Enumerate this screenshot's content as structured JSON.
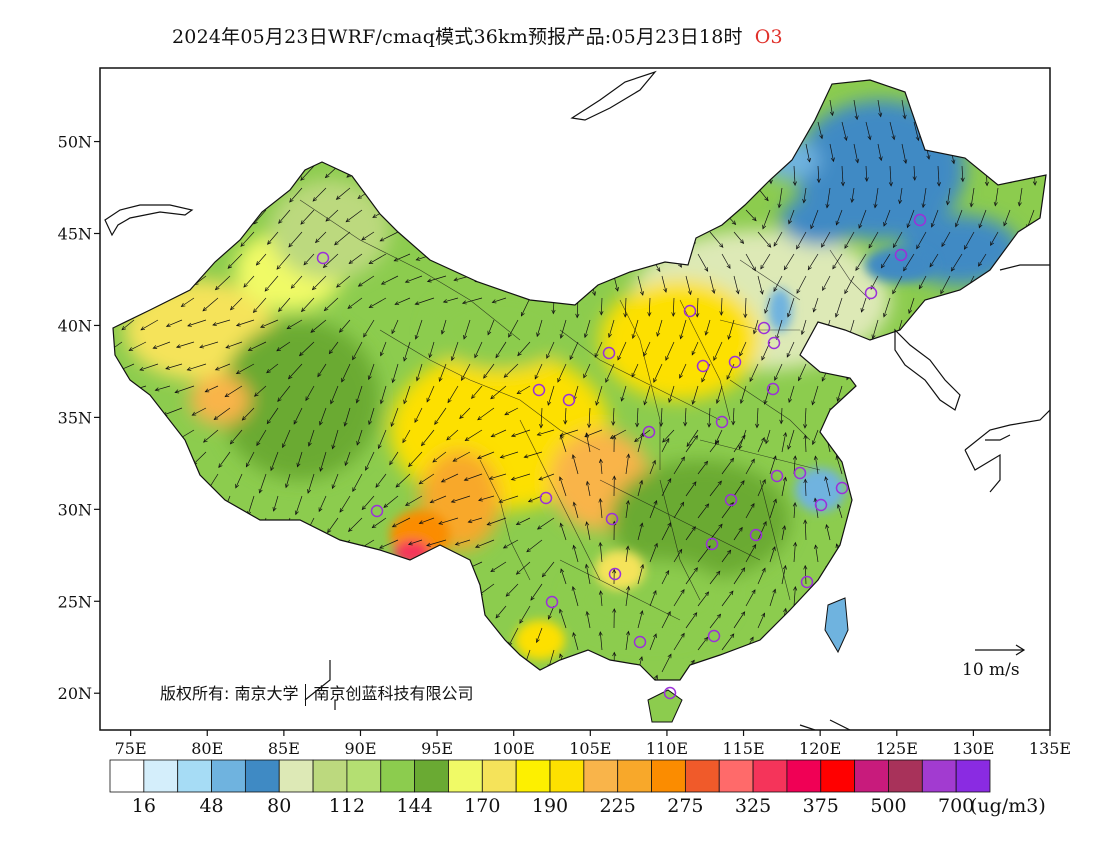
{
  "title": {
    "text": "2024年05月23日WRF/cmaq模式36km预报产品:05月23日18时",
    "species": "O3"
  },
  "map": {
    "lon_labels": [
      "75E",
      "80E",
      "85E",
      "90E",
      "95E",
      "100E",
      "105E",
      "110E",
      "115E",
      "120E",
      "125E",
      "130E",
      "135E"
    ],
    "lon_values": [
      75,
      80,
      85,
      90,
      95,
      100,
      105,
      110,
      115,
      120,
      125,
      130,
      135
    ],
    "lat_labels": [
      "20N",
      "25N",
      "30N",
      "35N",
      "40N",
      "45N",
      "50N"
    ],
    "lat_values": [
      20,
      25,
      30,
      35,
      40,
      45,
      50
    ],
    "lon_range": [
      73,
      135
    ],
    "lat_range": [
      18,
      54
    ],
    "copyright": {
      "prefix": "版权所有:",
      "org1": "南京大学",
      "org2": "南京创蓝科技有限公司"
    },
    "wind_reference": "10 m/s",
    "station_color": "#9b30d9",
    "boundary_color": "#111111"
  },
  "colorbar": {
    "colors": [
      "#ffffff",
      "#d4eefb",
      "#a6dcf5",
      "#6fb3df",
      "#3f8ac4",
      "#dde9b6",
      "#bcd97e",
      "#b4df72",
      "#8ccc4e",
      "#6aaa33",
      "#f0fa66",
      "#f5e35a",
      "#fdf000",
      "#fde000",
      "#f9b44a",
      "#f8a82a",
      "#fb8c00",
      "#f05a2a",
      "#ff6a6a",
      "#f5345a",
      "#f00055",
      "#ff0000",
      "#c81b7c",
      "#a8325a",
      "#a23bd0",
      "#8a2be2"
    ],
    "labels": [
      "16",
      "48",
      "80",
      "112",
      "144",
      "170",
      "190",
      "225",
      "275",
      "325",
      "375",
      "500",
      "700"
    ],
    "unit": "(ug/m3)"
  }
}
